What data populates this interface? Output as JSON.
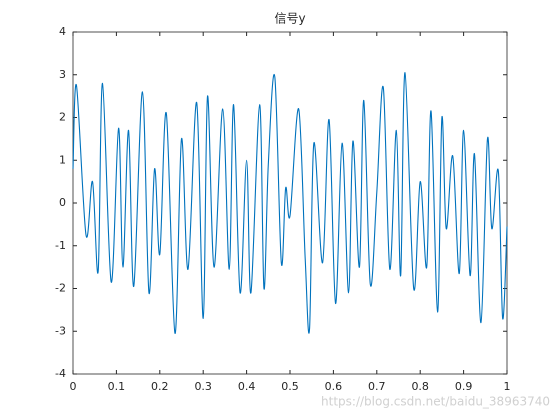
{
  "chart_data": {
    "type": "line",
    "title": "信号y",
    "x": [
      0,
      0.008,
      0.03,
      0.045,
      0.058,
      0.068,
      0.088,
      0.105,
      0.115,
      0.128,
      0.14,
      0.16,
      0.175,
      0.188,
      0.2,
      0.215,
      0.235,
      0.25,
      0.265,
      0.285,
      0.3,
      0.31,
      0.325,
      0.345,
      0.36,
      0.37,
      0.385,
      0.4,
      0.41,
      0.43,
      0.44,
      0.45,
      0.465,
      0.48,
      0.49,
      0.5,
      0.52,
      0.535,
      0.545,
      0.555,
      0.575,
      0.59,
      0.605,
      0.62,
      0.635,
      0.645,
      0.66,
      0.67,
      0.685,
      0.7,
      0.715,
      0.73,
      0.745,
      0.755,
      0.765,
      0.785,
      0.8,
      0.815,
      0.825,
      0.84,
      0.85,
      0.86,
      0.875,
      0.89,
      0.9,
      0.915,
      0.925,
      0.94,
      0.955,
      0.965,
      0.98,
      0.99,
      1
    ],
    "series": [
      {
        "name": "y",
        "color": "#0072bd",
        "values": [
          0.8,
          2.75,
          -0.75,
          0.5,
          -1.6,
          2.8,
          -1.85,
          1.75,
          -1.5,
          1.7,
          -1.95,
          2.6,
          -2.1,
          0.8,
          -1.2,
          2.1,
          -3.05,
          1.5,
          -1.55,
          2.35,
          -2.7,
          2.5,
          -1.5,
          2.2,
          -1.55,
          2.3,
          -2.1,
          1.0,
          -2.1,
          2.3,
          -2.0,
          0.9,
          2.95,
          -1.4,
          0.35,
          -0.3,
          2.2,
          -1.3,
          -2.95,
          1.4,
          -1.4,
          1.95,
          -2.35,
          1.4,
          -2.1,
          1.45,
          -1.5,
          2.4,
          -1.9,
          0.25,
          2.7,
          -1.55,
          1.7,
          -1.7,
          3.05,
          -2.0,
          0.5,
          -1.5,
          2.15,
          -2.55,
          2.0,
          -0.6,
          1.1,
          -1.65,
          1.7,
          -1.7,
          1.15,
          -2.8,
          1.5,
          -0.6,
          0.75,
          -2.7,
          -0.55
        ]
      }
    ],
    "xlim": [
      0,
      1
    ],
    "ylim": [
      -4,
      4
    ],
    "xticks": [
      0,
      0.1,
      0.2,
      0.3,
      0.4,
      0.5,
      0.6,
      0.7,
      0.8,
      0.9,
      1
    ],
    "yticks": [
      -4,
      -3,
      -2,
      -1,
      0,
      1,
      2,
      3,
      4
    ],
    "grid": false
  },
  "watermark": "https://blog.csdn.net/baidu_38963740"
}
